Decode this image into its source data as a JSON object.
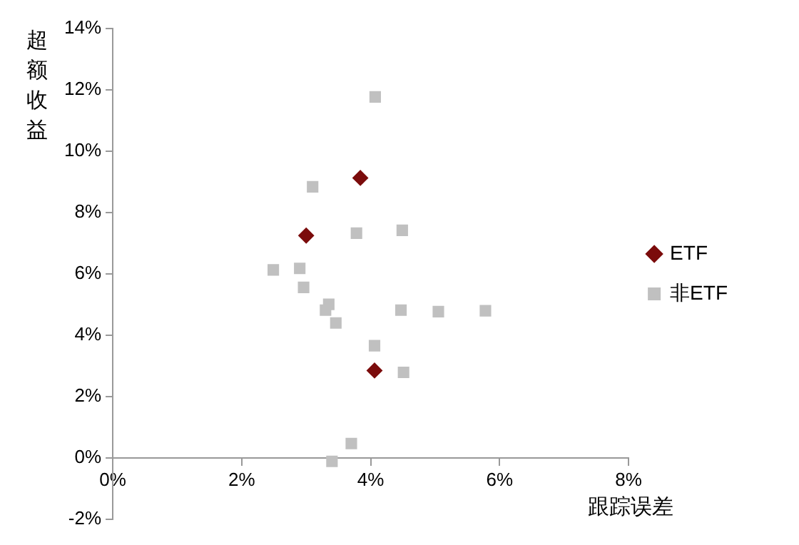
{
  "chart_data": {
    "type": "scatter",
    "xlabel": "跟踪误差",
    "ylabel": "超额收益",
    "xlim": [
      0,
      8
    ],
    "ylim": [
      -2,
      14
    ],
    "xticks": [
      {
        "value": 0,
        "label": "0%"
      },
      {
        "value": 2,
        "label": "2%"
      },
      {
        "value": 4,
        "label": "4%"
      },
      {
        "value": 6,
        "label": "6%"
      },
      {
        "value": 8,
        "label": "8%"
      }
    ],
    "yticks": [
      {
        "value": -2,
        "label": "-2%"
      },
      {
        "value": 0,
        "label": "0%"
      },
      {
        "value": 2,
        "label": "2%"
      },
      {
        "value": 4,
        "label": "4%"
      },
      {
        "value": 6,
        "label": "6%"
      },
      {
        "value": 8,
        "label": "8%"
      },
      {
        "value": 10,
        "label": "10%"
      },
      {
        "value": 12,
        "label": "12%"
      },
      {
        "value": 14,
        "label": "14%"
      }
    ],
    "grid": false,
    "legend": "right",
    "series": [
      {
        "name": "ETF",
        "color": "#7b0c0c",
        "marker": "diamond",
        "x": [
          3.84,
          3.0,
          4.06
        ],
        "values": [
          9.13,
          7.25,
          2.85
        ]
      },
      {
        "name": "非ETF",
        "color": "#c0c0c0",
        "marker": "square",
        "x": [
          4.07,
          3.1,
          3.78,
          4.49,
          2.49,
          2.9,
          2.96,
          3.35,
          3.3,
          3.46,
          4.47,
          5.05,
          5.78,
          4.06,
          4.51,
          3.7,
          3.4
        ],
        "values": [
          11.77,
          8.84,
          7.33,
          7.42,
          6.13,
          6.18,
          5.56,
          5.01,
          4.82,
          4.4,
          4.82,
          4.77,
          4.8,
          3.66,
          2.79,
          0.47,
          -0.11
        ]
      }
    ]
  }
}
